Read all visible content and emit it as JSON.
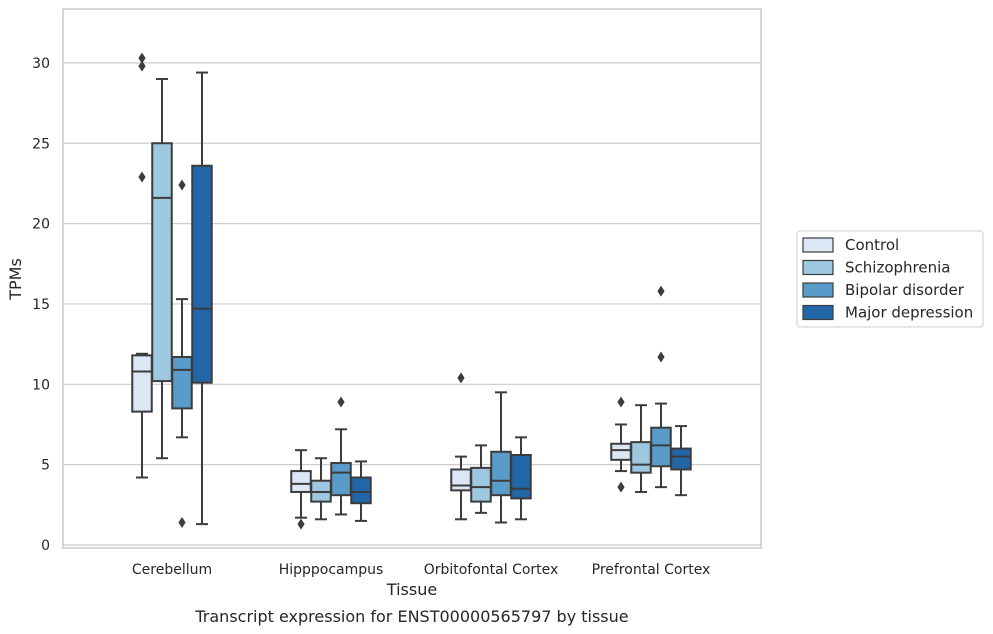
{
  "chart_data": {
    "type": "box",
    "title": "",
    "caption": "Transcript expression for ENST00000565797 by tissue",
    "xlabel": "Tissue",
    "ylabel": "TPMs",
    "ylim": [
      -0.2,
      33.2
    ],
    "yticks": [
      0,
      5,
      10,
      15,
      20,
      25,
      30
    ],
    "grid": "horizontal",
    "legend_position": "right",
    "categories": [
      "Cerebellum",
      "Hipppocampus",
      "Orbitofontal Cortex",
      "Prefrontal Cortex"
    ],
    "series": [
      {
        "name": "Control",
        "color": "#dbe7f4",
        "boxes": [
          {
            "whislo": 4.2,
            "q1": 8.3,
            "med": 10.8,
            "q3": 11.8,
            "whishi": 11.9,
            "fliers": [
              22.9,
              29.8,
              30.3
            ]
          },
          {
            "whislo": 1.7,
            "q1": 3.3,
            "med": 3.8,
            "q3": 4.6,
            "whishi": 5.9,
            "fliers": [
              1.3
            ]
          },
          {
            "whislo": 1.6,
            "q1": 3.4,
            "med": 3.7,
            "q3": 4.7,
            "whishi": 5.5,
            "fliers": [
              10.4
            ]
          },
          {
            "whislo": 4.6,
            "q1": 5.3,
            "med": 5.9,
            "q3": 6.3,
            "whishi": 7.5,
            "fliers": [
              3.6,
              8.9
            ]
          }
        ]
      },
      {
        "name": "Schizophrenia",
        "color": "#9ec8e0",
        "boxes": [
          {
            "whislo": 5.4,
            "q1": 10.2,
            "med": 21.6,
            "q3": 25.0,
            "whishi": 29.0,
            "fliers": []
          },
          {
            "whislo": 1.6,
            "q1": 2.7,
            "med": 3.3,
            "q3": 4.0,
            "whishi": 5.4,
            "fliers": []
          },
          {
            "whislo": 2.0,
            "q1": 2.7,
            "med": 3.6,
            "q3": 4.8,
            "whishi": 6.2,
            "fliers": []
          },
          {
            "whislo": 3.3,
            "q1": 4.5,
            "med": 5.0,
            "q3": 6.4,
            "whishi": 8.7,
            "fliers": []
          }
        ]
      },
      {
        "name": "Bipolar disorder",
        "color": "#5a9cc9",
        "boxes": [
          {
            "whislo": 6.7,
            "q1": 8.5,
            "med": 10.9,
            "q3": 11.7,
            "whishi": 15.3,
            "fliers": [
              1.4,
              22.4
            ]
          },
          {
            "whislo": 1.9,
            "q1": 3.1,
            "med": 4.5,
            "q3": 5.1,
            "whishi": 7.2,
            "fliers": [
              8.9
            ]
          },
          {
            "whislo": 1.4,
            "q1": 3.1,
            "med": 4.0,
            "q3": 5.8,
            "whishi": 9.5,
            "fliers": []
          },
          {
            "whislo": 3.6,
            "q1": 4.9,
            "med": 6.2,
            "q3": 7.3,
            "whishi": 8.8,
            "fliers": [
              11.7,
              15.8
            ]
          }
        ]
      },
      {
        "name": "Major depression",
        "color": "#2366a8",
        "boxes": [
          {
            "whislo": 1.3,
            "q1": 10.1,
            "med": 14.7,
            "q3": 23.6,
            "whishi": 29.4,
            "fliers": []
          },
          {
            "whislo": 1.5,
            "q1": 2.6,
            "med": 3.3,
            "q3": 4.2,
            "whishi": 5.2,
            "fliers": []
          },
          {
            "whislo": 1.6,
            "q1": 2.9,
            "med": 3.5,
            "q3": 5.6,
            "whishi": 6.7,
            "fliers": []
          },
          {
            "whislo": 3.1,
            "q1": 4.7,
            "med": 5.5,
            "q3": 6.0,
            "whishi": 7.4,
            "fliers": []
          }
        ]
      }
    ]
  }
}
